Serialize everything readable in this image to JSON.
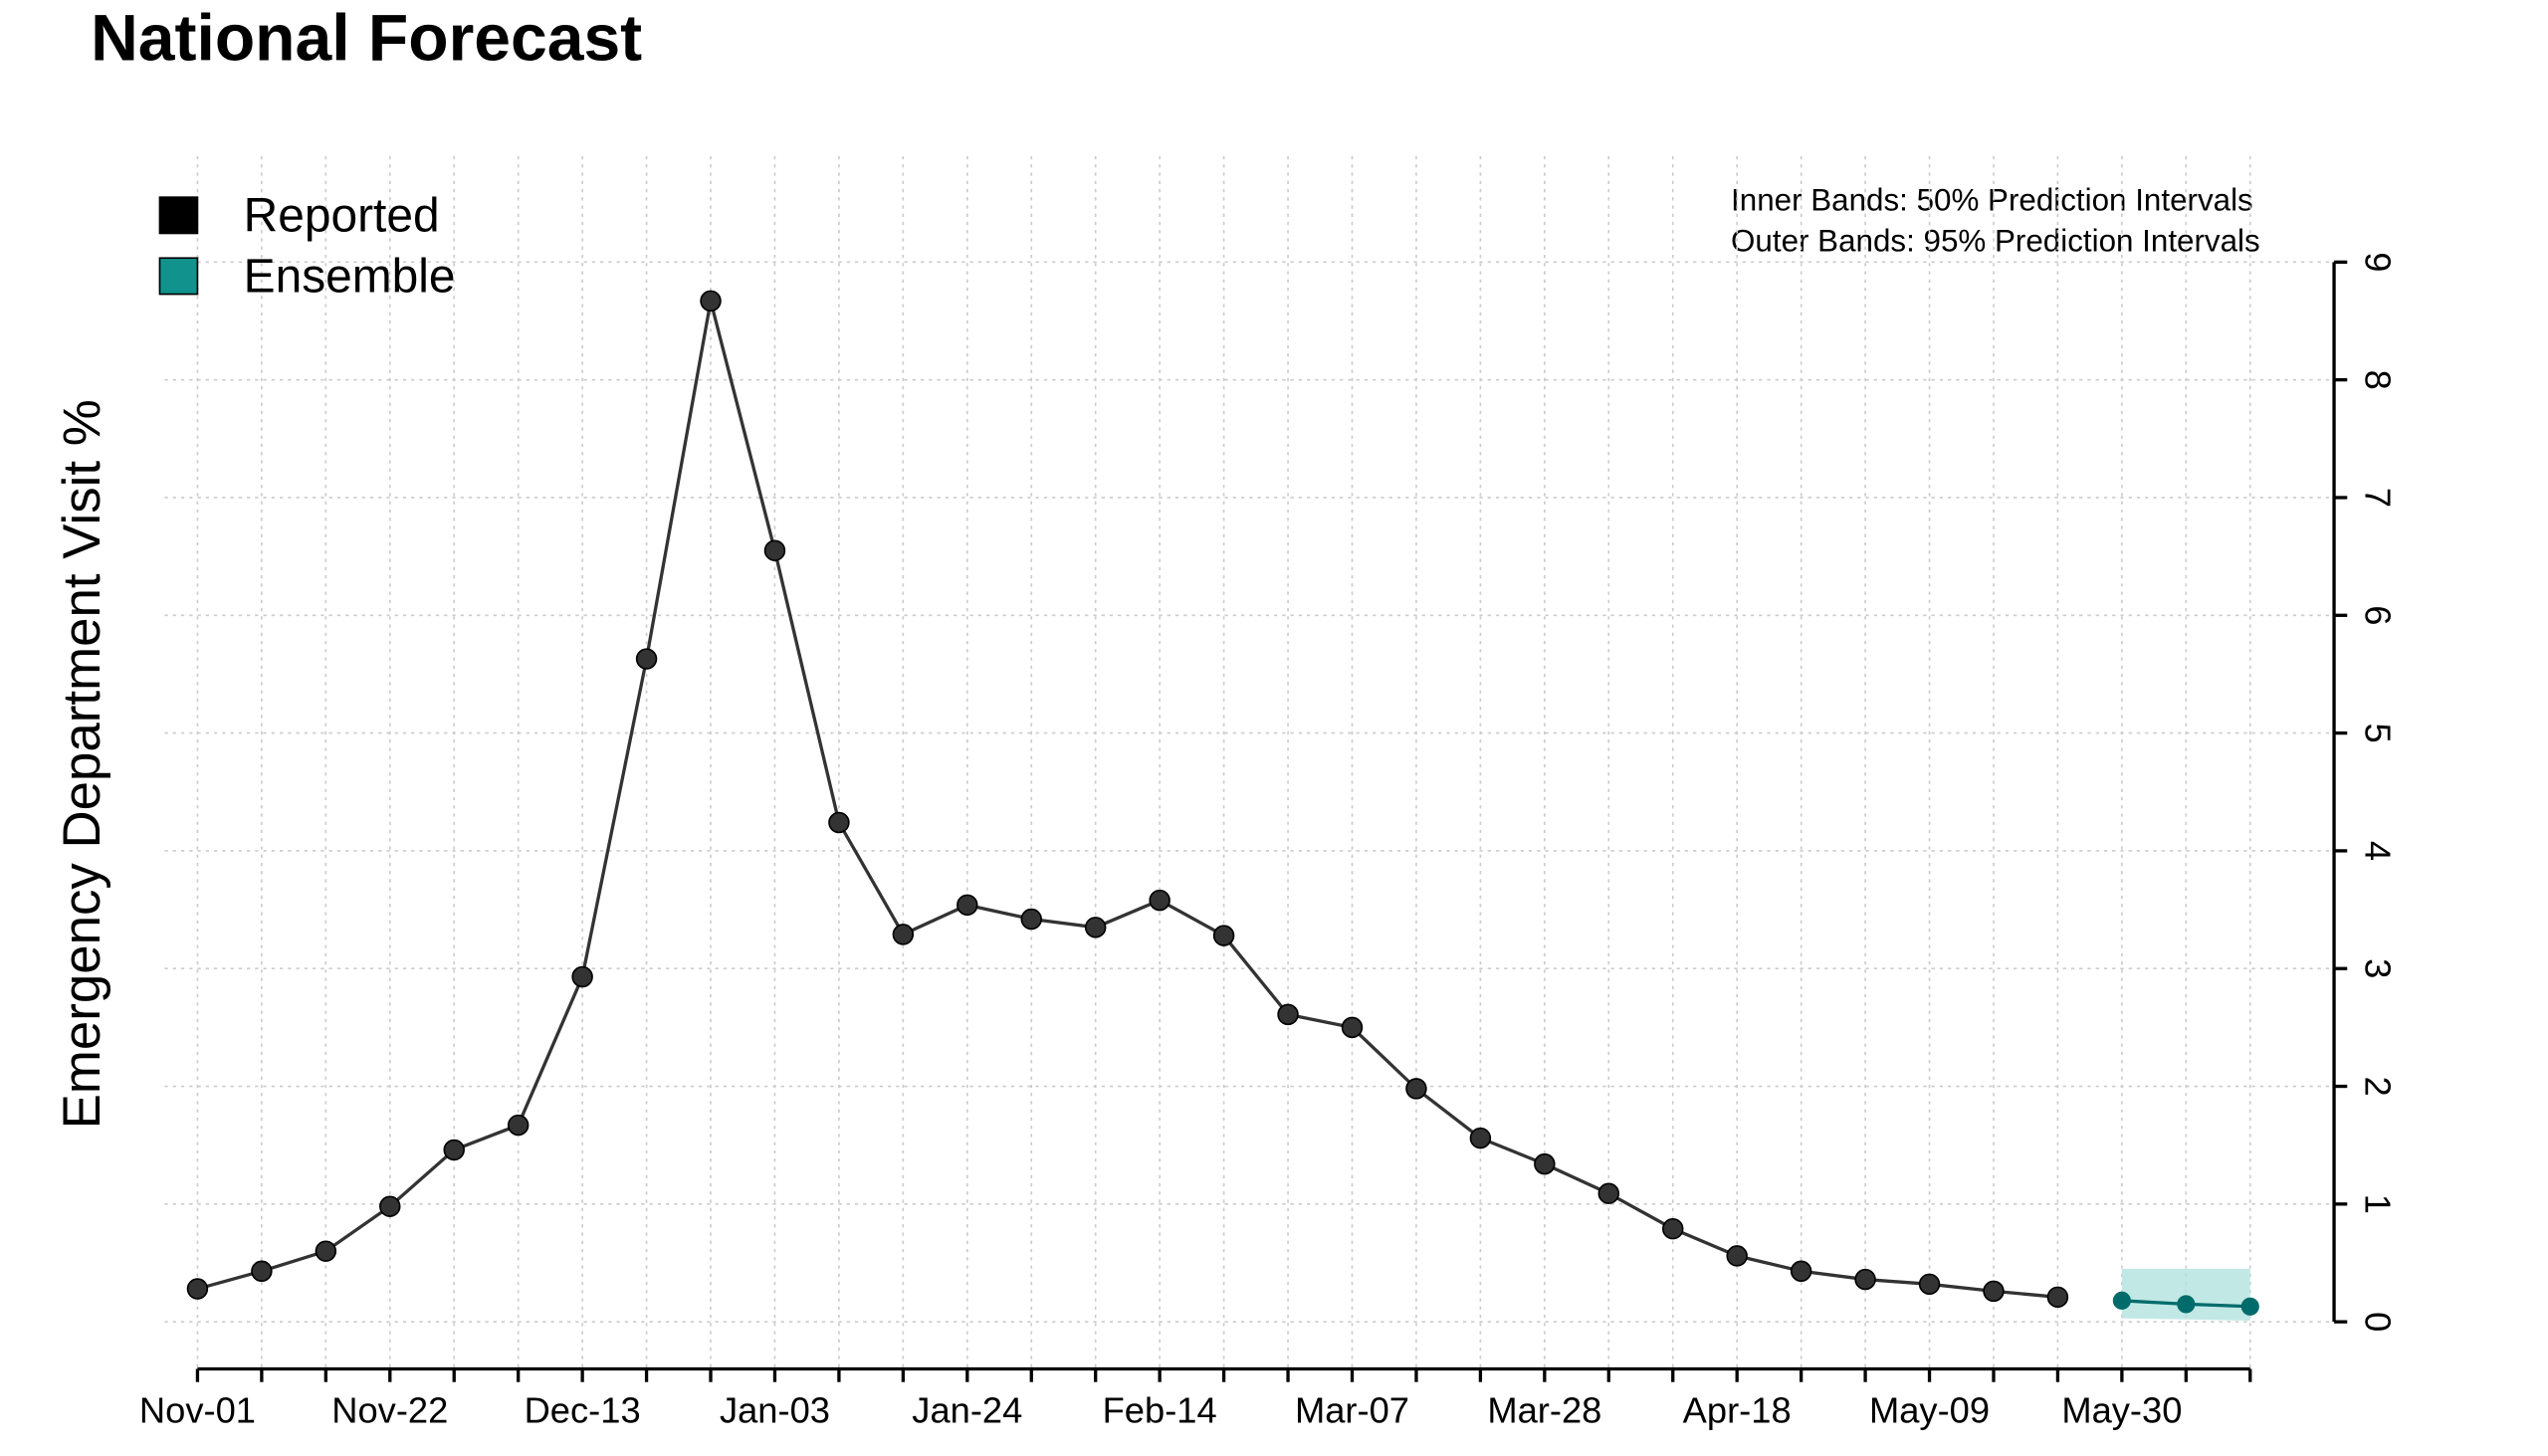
{
  "chart_data": {
    "type": "line",
    "title": "National Forecast",
    "y_label": "Emergency Department Visit %",
    "annotations": [
      "Inner Bands: 50% Prediction Intervals",
      "Outer Bands: 95% Prediction Intervals"
    ],
    "categories": [
      "Nov-01",
      null,
      null,
      "Nov-22",
      null,
      null,
      "Dec-13",
      null,
      null,
      "Jan-03",
      null,
      null,
      "Jan-24",
      null,
      null,
      "Feb-14",
      null,
      null,
      "Mar-07",
      null,
      null,
      "Mar-28",
      null,
      null,
      "Apr-18",
      null,
      null,
      "May-09",
      null,
      null,
      "May-30",
      null,
      null
    ],
    "series": [
      {
        "name": "Reported",
        "color": "#000000",
        "line_color": "#333333",
        "values": [
          0.28,
          0.43,
          0.6,
          0.98,
          1.46,
          1.67,
          2.93,
          5.63,
          8.67,
          6.55,
          4.24,
          3.29,
          3.54,
          3.42,
          3.35,
          3.58,
          3.28,
          2.61,
          2.5,
          1.98,
          1.56,
          1.34,
          1.09,
          0.79,
          0.56,
          0.43,
          0.36,
          0.32,
          0.26,
          0.21,
          null,
          null,
          null
        ]
      },
      {
        "name": "Ensemble",
        "color": "#12928c",
        "line_color": "#006b6b",
        "band_color": "#b2e2df",
        "values": [
          null,
          null,
          null,
          null,
          null,
          null,
          null,
          null,
          null,
          null,
          null,
          null,
          null,
          null,
          null,
          null,
          null,
          null,
          null,
          null,
          null,
          null,
          null,
          null,
          null,
          null,
          null,
          null,
          null,
          null,
          0.18,
          0.15,
          0.13
        ],
        "lower": [
          null,
          null,
          null,
          null,
          null,
          null,
          null,
          null,
          null,
          null,
          null,
          null,
          null,
          null,
          null,
          null,
          null,
          null,
          null,
          null,
          null,
          null,
          null,
          null,
          null,
          null,
          null,
          null,
          null,
          null,
          0.03,
          0.02,
          0.01
        ],
        "upper": [
          null,
          null,
          null,
          null,
          null,
          null,
          null,
          null,
          null,
          null,
          null,
          null,
          null,
          null,
          null,
          null,
          null,
          null,
          null,
          null,
          null,
          null,
          null,
          null,
          null,
          null,
          null,
          null,
          null,
          null,
          0.45,
          0.45,
          0.45
        ]
      }
    ],
    "ylim": [
      -0.4,
      9.9
    ],
    "yticks": [
      0,
      1,
      2,
      3,
      4,
      5,
      6,
      7,
      8,
      9
    ],
    "y_axis_side": "right",
    "grid": true,
    "legend": "upper left"
  }
}
